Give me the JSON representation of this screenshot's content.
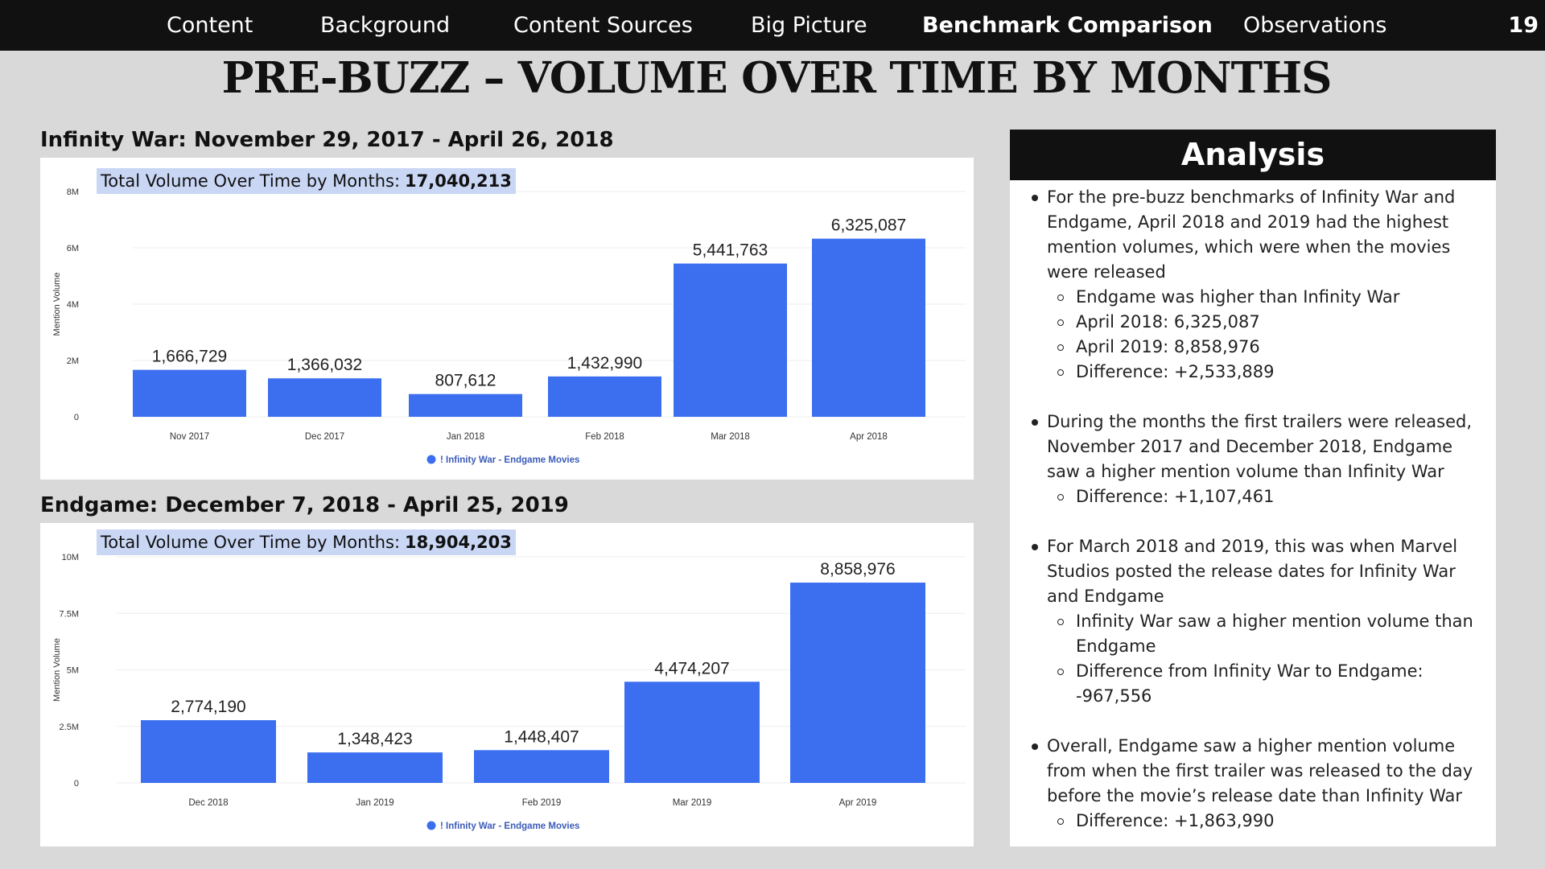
{
  "nav": {
    "items": [
      "Content",
      "Background",
      "Content Sources",
      "Big Picture",
      "Benchmark Comparison",
      "Observations"
    ],
    "active": "Benchmark Comparison",
    "page_number": "19"
  },
  "title": "PRE-BUZZ – VOLUME OVER TIME BY MONTHS",
  "colors": {
    "bar": "#3b6ff0",
    "nav_bg": "#111111",
    "page_bg": "#d9d9d9",
    "total_box_bg": "#c9d7f5"
  },
  "chart_data": [
    {
      "type": "bar",
      "heading": "Infinity War: November 29, 2017 - April 26, 2018",
      "total_label": "Total Volume Over Time by Months:",
      "total_value": "17,040,213",
      "ylabel": "Mention Volume",
      "ylim": [
        0,
        8000000
      ],
      "yticks": [
        "0",
        "2M",
        "4M",
        "6M",
        "8M"
      ],
      "categories": [
        "Nov 2017",
        "Dec 2017",
        "Jan 2018",
        "Feb 2018",
        "Mar 2018",
        "Apr 2018"
      ],
      "series": [
        {
          "name": "! Infinity War - Endgame Movies",
          "values": [
            1666729,
            1366032,
            807612,
            1432990,
            5441763,
            6325087
          ],
          "labels": [
            "1,666,729",
            "1,366,032",
            "807,612",
            "1,432,990",
            "5,441,763",
            "6,325,087"
          ]
        }
      ],
      "legend": "bottom-center",
      "grid": true
    },
    {
      "type": "bar",
      "heading": "Endgame: December 7, 2018 - April 25, 2019",
      "total_label": "Total Volume Over Time by Months:",
      "total_value": "18,904,203",
      "ylabel": "Mention Volume",
      "ylim": [
        0,
        10000000
      ],
      "yticks": [
        "0",
        "2.5M",
        "5M",
        "7.5M",
        "10M"
      ],
      "categories": [
        "Dec 2018",
        "Jan 2019",
        "Feb 2019",
        "Mar 2019",
        "Apr 2019"
      ],
      "series": [
        {
          "name": "! Infinity War - Endgame Movies",
          "values": [
            2774190,
            1348423,
            1448407,
            4474207,
            8858976
          ],
          "labels": [
            "2,774,190",
            "1,348,423",
            "1,448,407",
            "4,474,207",
            "8,858,976"
          ]
        }
      ],
      "legend": "bottom-center",
      "grid": true
    }
  ],
  "analysis": {
    "title": "Analysis",
    "bullets": [
      {
        "text": "For the pre-buzz benchmarks of Infinity War and Endgame, April 2018 and 2019 had the highest mention volumes, which were when the movies were released",
        "subs": [
          "Endgame was higher than Infinity War",
          "April 2018: 6,325,087",
          "April 2019: 8,858,976",
          "Difference: +2,533,889"
        ]
      },
      {
        "text": "During the months the first trailers were released, November 2017 and December 2018, Endgame saw a higher mention volume than Infinity War",
        "subs": [
          "Difference: +1,107,461"
        ]
      },
      {
        "text": "For March 2018 and 2019, this was when Marvel Studios posted the release dates for Infinity War and Endgame",
        "subs": [
          "Infinity War saw a higher mention volume than Endgame",
          "Difference from Infinity War to Endgame: -967,556"
        ]
      },
      {
        "text": "Overall, Endgame saw a higher mention volume from when the first trailer was released to the day before the movie’s release date than Infinity War",
        "subs": [
          "Difference: +1,863,990"
        ]
      }
    ]
  }
}
